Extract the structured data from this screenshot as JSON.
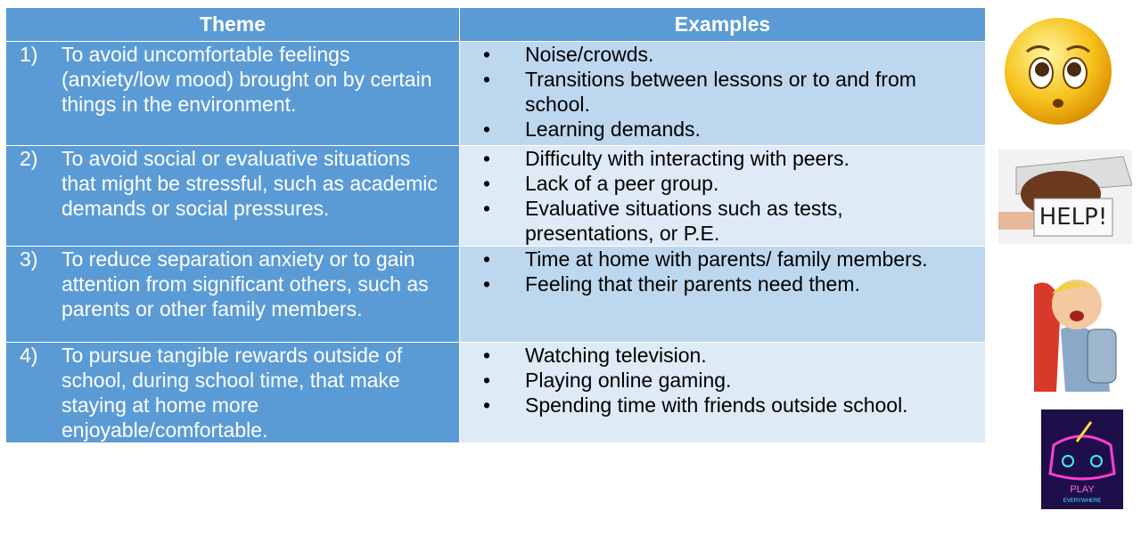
{
  "table": {
    "header": [
      "Theme",
      "Examples"
    ],
    "rows": [
      {
        "number": "1)",
        "theme": "To avoid uncomfortable feelings (anxiety/low mood) brought on by certain things in the environment.",
        "examples": [
          "Noise/crowds.",
          "Transitions between lessons or to and from school.",
          "Learning demands."
        ]
      },
      {
        "number": "2)",
        "theme": "To avoid social or evaluative situations that might be stressful, such as academic demands or social pressures.",
        "examples": [
          "Difficulty with interacting with peers.",
          "Lack of a peer group.",
          "Evaluative situations such as tests, presentations, or P.E."
        ]
      },
      {
        "number": "3)",
        "theme": "To reduce separation anxiety or to gain attention from significant others, such as parents or other family members.",
        "examples": [
          "Time at home with parents/ family members.",
          "Feeling that their parents need them."
        ]
      },
      {
        "number": "4)",
        "theme": "To pursue tangible rewards outside of school, during school time, that make staying at home more enjoyable/comfortable.",
        "examples": [
          "Watching television.",
          "Playing online gaming.",
          "Spending time with friends outside school."
        ]
      }
    ]
  },
  "images": {
    "help_sign": "HELP!",
    "neon_play": "PLAY",
    "neon_everywhere": "EVERYWHERE"
  }
}
